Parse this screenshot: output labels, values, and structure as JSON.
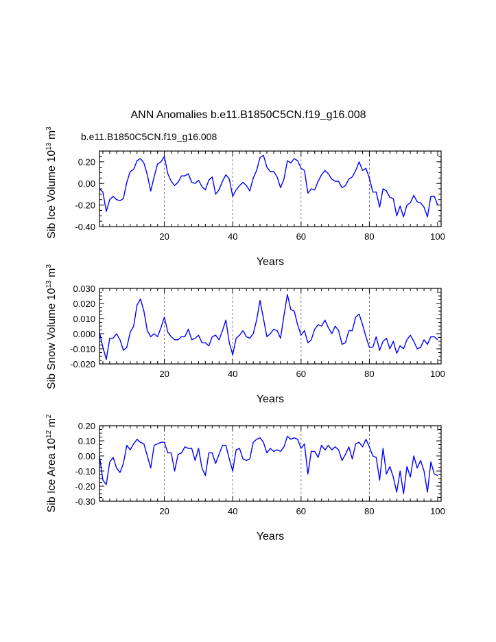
{
  "figure": {
    "title": "ANN Anomalies b.e11.B1850C5CN.f19_g16.008",
    "case_label": "b.e11.B1850C5CN.f19_g16.008",
    "case_label_color": "#0000ff",
    "line_color": "#0000ff"
  },
  "chart_data": [
    {
      "type": "line",
      "panel": "volume",
      "ylabel_main": "Sib Ice Volume 10",
      "ylabel_exp": "13",
      "ylabel_unit": " m",
      "ylabel_unit_exp": "3",
      "xlabel": "Years",
      "xlim": [
        1,
        101
      ],
      "ylim": [
        -0.4,
        0.3
      ],
      "xticks": [
        20,
        40,
        60,
        80,
        100
      ],
      "yticks": [
        -0.4,
        -0.2,
        0.0,
        0.2
      ],
      "ytick_labels": [
        "-0.40",
        "-0.20",
        "0.00",
        "0.20"
      ],
      "yminor_step": 0.05,
      "vlines": [
        20,
        40,
        60,
        80
      ],
      "values": [
        -0.05,
        -0.08,
        -0.26,
        -0.15,
        -0.12,
        -0.15,
        -0.16,
        -0.14,
        0.01,
        0.11,
        0.13,
        0.21,
        0.23,
        0.19,
        0.08,
        -0.07,
        0.06,
        0.18,
        0.2,
        0.25,
        0.09,
        0.02,
        -0.02,
        0.01,
        0.07,
        0.07,
        0.09,
        0.01,
        0.0,
        0.03,
        -0.03,
        -0.06,
        0.03,
        0.06,
        -0.1,
        -0.06,
        0.02,
        0.08,
        0.04,
        -0.12,
        -0.06,
        -0.02,
        0.01,
        -0.02,
        -0.07,
        0.05,
        0.12,
        0.24,
        0.26,
        0.15,
        0.11,
        0.11,
        0.06,
        -0.04,
        0.04,
        0.21,
        0.19,
        0.23,
        0.21,
        0.14,
        0.12,
        -0.09,
        -0.05,
        -0.06,
        0.02,
        0.08,
        0.12,
        0.09,
        0.04,
        0.02,
        0.02,
        -0.04,
        -0.02,
        0.04,
        0.06,
        0.12,
        0.2,
        0.12,
        0.14,
        0.05,
        -0.08,
        -0.08,
        -0.22,
        -0.05,
        -0.07,
        -0.13,
        -0.14,
        -0.3,
        -0.21,
        -0.31,
        -0.2,
        -0.18,
        -0.11,
        -0.17,
        -0.18,
        -0.22,
        -0.31,
        -0.12,
        -0.12,
        -0.2
      ]
    },
    {
      "type": "line",
      "panel": "snow",
      "ylabel_main": "Sib Snow Volume 10",
      "ylabel_exp": "13",
      "ylabel_unit": " m",
      "ylabel_unit_exp": "3",
      "xlabel": "Years",
      "xlim": [
        1,
        101
      ],
      "ylim": [
        -0.02,
        0.03
      ],
      "xticks": [
        20,
        40,
        60,
        80,
        100
      ],
      "yticks": [
        -0.02,
        -0.01,
        0.0,
        0.01,
        0.02,
        0.03
      ],
      "ytick_labels": [
        "-0.020",
        "-0.010",
        "0.000",
        "0.010",
        "0.020",
        "0.030"
      ],
      "yminor_step": 0.0025,
      "vlines": [
        20,
        40,
        60,
        80
      ],
      "values": [
        0.001,
        -0.009,
        -0.017,
        -0.003,
        -0.003,
        0.0,
        -0.004,
        -0.011,
        -0.009,
        0.001,
        0.005,
        0.019,
        0.023,
        0.015,
        0.002,
        -0.002,
        0.0,
        -0.002,
        0.004,
        0.011,
        0.001,
        -0.002,
        -0.004,
        -0.004,
        -0.002,
        -0.002,
        0.003,
        -0.004,
        -0.003,
        -0.001,
        -0.006,
        -0.006,
        -0.008,
        -0.002,
        -0.001,
        -0.004,
        0.002,
        0.009,
        -0.006,
        -0.014,
        -0.003,
        -0.001,
        0.002,
        -0.002,
        -0.003,
        0.0,
        0.009,
        0.022,
        0.01,
        -0.002,
        0.0,
        0.003,
        0.002,
        -0.003,
        0.012,
        0.026,
        0.016,
        0.015,
        0.006,
        -0.001,
        0.002,
        -0.006,
        -0.004,
        0.003,
        0.006,
        0.005,
        0.009,
        0.004,
        0.0,
        0.005,
        0.002,
        -0.007,
        -0.006,
        0.002,
        0.002,
        0.011,
        0.013,
        0.006,
        -0.002,
        -0.009,
        -0.009,
        -0.002,
        -0.011,
        -0.005,
        -0.003,
        -0.01,
        -0.005,
        -0.013,
        -0.008,
        -0.01,
        -0.004,
        -0.001,
        -0.005,
        -0.01,
        -0.009,
        -0.004,
        -0.007,
        -0.002,
        -0.002,
        -0.004
      ]
    },
    {
      "type": "line",
      "panel": "area",
      "ylabel_main": "Sib Ice Area 10",
      "ylabel_exp": "12",
      "ylabel_unit": " m",
      "ylabel_unit_exp": "2",
      "xlabel": "Years",
      "xlim": [
        1,
        101
      ],
      "ylim": [
        -0.3,
        0.2
      ],
      "xticks": [
        20,
        40,
        60,
        80,
        100
      ],
      "yticks": [
        -0.3,
        -0.2,
        -0.1,
        0.0,
        0.1,
        0.2
      ],
      "ytick_labels": [
        "-0.30",
        "-0.20",
        "-0.10",
        "0.00",
        "0.10",
        "0.20"
      ],
      "yminor_step": 0.025,
      "vlines": [
        20,
        40,
        60,
        80
      ],
      "values": [
        0.0,
        -0.16,
        -0.19,
        -0.04,
        -0.01,
        -0.08,
        -0.11,
        -0.05,
        0.07,
        0.04,
        0.08,
        0.11,
        0.09,
        0.08,
        0.0,
        -0.08,
        0.07,
        0.08,
        0.09,
        0.09,
        0.02,
        0.02,
        -0.1,
        0.01,
        0.02,
        0.06,
        0.05,
        0.05,
        -0.03,
        0.05,
        -0.08,
        -0.13,
        0.02,
        0.02,
        -0.05,
        0.01,
        0.07,
        0.07,
        -0.02,
        -0.1,
        0.04,
        0.05,
        -0.02,
        -0.03,
        -0.02,
        0.09,
        0.11,
        0.12,
        0.09,
        0.02,
        0.05,
        0.03,
        0.04,
        0.03,
        0.06,
        0.13,
        0.11,
        0.12,
        0.11,
        0.05,
        0.08,
        -0.12,
        0.03,
        0.03,
        -0.01,
        0.07,
        0.04,
        0.07,
        0.04,
        0.06,
        0.04,
        -0.03,
        0.01,
        0.06,
        -0.02,
        0.08,
        0.09,
        0.06,
        0.11,
        0.06,
        0.0,
        -0.01,
        -0.16,
        0.05,
        -0.12,
        -0.07,
        -0.14,
        -0.24,
        -0.1,
        -0.25,
        -0.07,
        -0.14,
        0.0,
        -0.08,
        -0.03,
        -0.1,
        -0.24,
        -0.04,
        -0.12,
        -0.13
      ]
    }
  ]
}
